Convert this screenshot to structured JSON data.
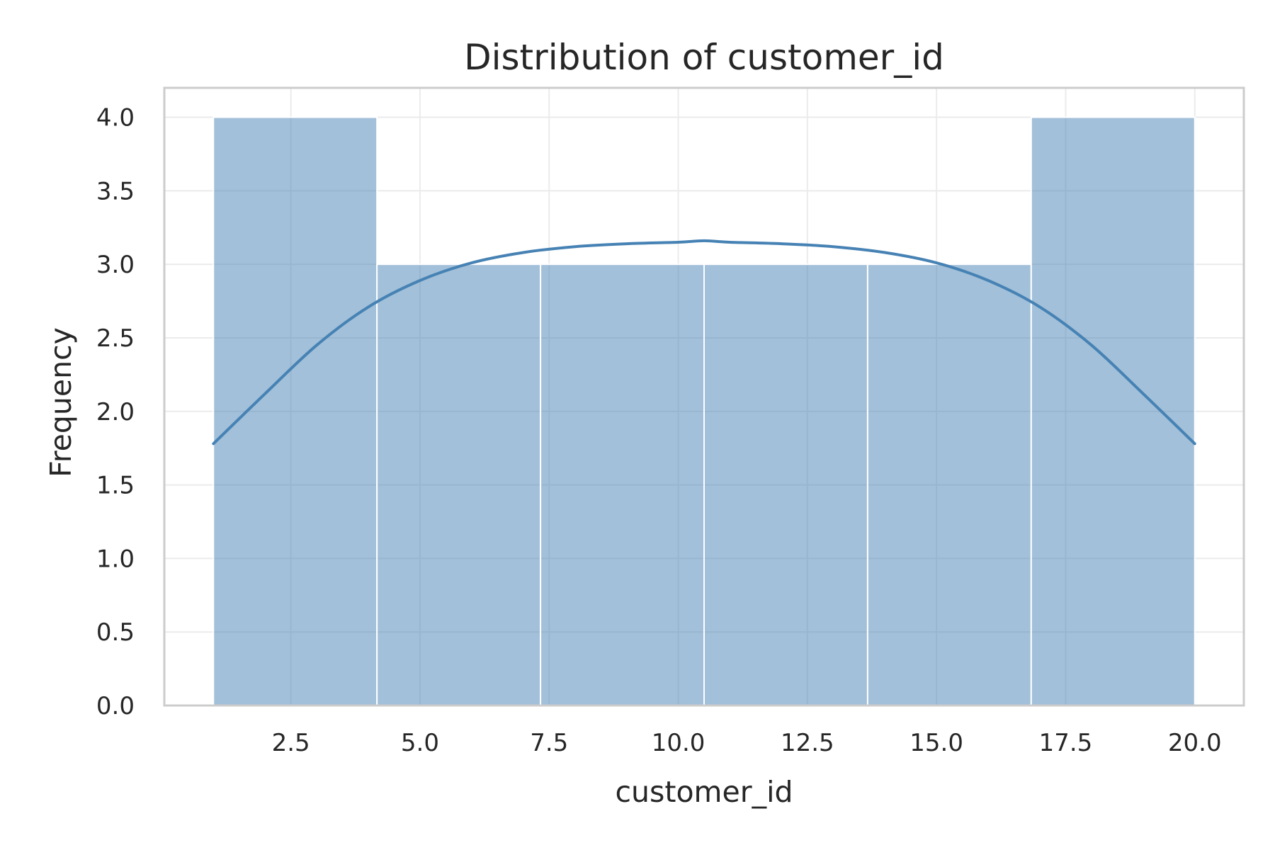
{
  "chart_data": {
    "type": "bar",
    "title": "Distribution of customer_id",
    "xlabel": "customer_id",
    "ylabel": "Frequency",
    "xlim": [
      0.05,
      20.95
    ],
    "ylim": [
      0,
      4.2
    ],
    "xticks": [
      2.5,
      5.0,
      7.5,
      10.0,
      12.5,
      15.0,
      17.5,
      20.0
    ],
    "xtick_labels": [
      "2.5",
      "5.0",
      "7.5",
      "10.0",
      "12.5",
      "15.0",
      "17.5",
      "20.0"
    ],
    "yticks": [
      0.0,
      0.5,
      1.0,
      1.5,
      2.0,
      2.5,
      3.0,
      3.5,
      4.0
    ],
    "ytick_labels": [
      "0.0",
      "0.5",
      "1.0",
      "1.5",
      "2.0",
      "2.5",
      "3.0",
      "3.5",
      "4.0"
    ],
    "grid": true,
    "bins": [
      {
        "start": 1.0,
        "end": 4.1667,
        "count": 4
      },
      {
        "start": 4.1667,
        "end": 7.3333,
        "count": 3
      },
      {
        "start": 7.3333,
        "end": 10.5,
        "count": 3
      },
      {
        "start": 10.5,
        "end": 13.6667,
        "count": 3
      },
      {
        "start": 13.6667,
        "end": 16.8333,
        "count": 3
      },
      {
        "start": 16.8333,
        "end": 20.0,
        "count": 4
      }
    ],
    "kde": {
      "x": [
        1,
        2,
        3,
        4,
        5,
        6,
        7,
        8,
        9,
        10,
        10.5,
        11,
        12,
        13,
        14,
        15,
        16,
        17,
        18,
        19,
        20
      ],
      "y": [
        1.78,
        2.12,
        2.45,
        2.71,
        2.89,
        3.01,
        3.08,
        3.12,
        3.14,
        3.15,
        3.16,
        3.15,
        3.14,
        3.12,
        3.08,
        3.01,
        2.89,
        2.71,
        2.45,
        2.12,
        1.78
      ]
    },
    "colors": {
      "bar": "#4682b4",
      "kde": "#4682b4"
    }
  }
}
